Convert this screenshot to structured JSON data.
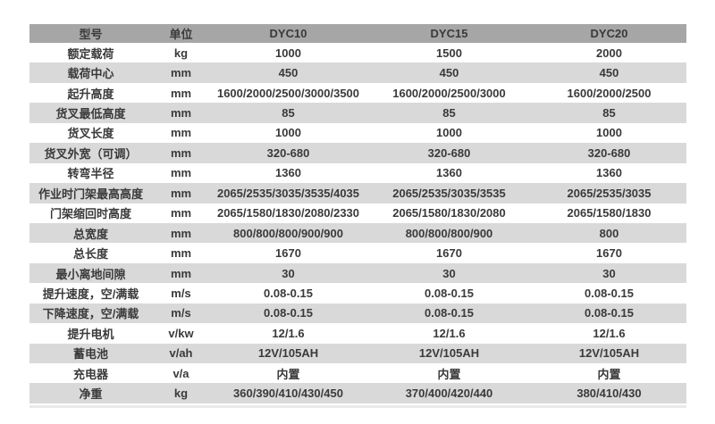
{
  "table": {
    "columns": [
      "型号",
      "单位",
      "DYC10",
      "DYC15",
      "DYC20"
    ],
    "rows": [
      {
        "label": "额定载荷",
        "unit": "kg",
        "dyc10": "1000",
        "dyc15": "1500",
        "dyc20": "2000"
      },
      {
        "label": "载荷中心",
        "unit": "mm",
        "dyc10": "450",
        "dyc15": "450",
        "dyc20": "450"
      },
      {
        "label": "起升高度",
        "unit": "mm",
        "dyc10": "1600/2000/2500/3000/3500",
        "dyc15": "1600/2000/2500/3000",
        "dyc20": "1600/2000/2500"
      },
      {
        "label": "货叉最低高度",
        "unit": "mm",
        "dyc10": "85",
        "dyc15": "85",
        "dyc20": "85"
      },
      {
        "label": "货叉长度",
        "unit": "mm",
        "dyc10": "1000",
        "dyc15": "1000",
        "dyc20": "1000"
      },
      {
        "label": "货叉外宽（可调）",
        "unit": "mm",
        "dyc10": "320-680",
        "dyc15": "320-680",
        "dyc20": "320-680"
      },
      {
        "label": "转弯半径",
        "unit": "mm",
        "dyc10": "1360",
        "dyc15": "1360",
        "dyc20": "1360"
      },
      {
        "label": "作业时门架最高高度",
        "unit": "mm",
        "dyc10": "2065/2535/3035/3535/4035",
        "dyc15": "2065/2535/3035/3535",
        "dyc20": "2065/2535/3035"
      },
      {
        "label": "门架缩回时高度",
        "unit": "mm",
        "dyc10": "2065/1580/1830/2080/2330",
        "dyc15": "2065/1580/1830/2080",
        "dyc20": "2065/1580/1830"
      },
      {
        "label": "总宽度",
        "unit": "mm",
        "dyc10": "800/800/800/900/900",
        "dyc15": "800/800/800/900",
        "dyc20": "800"
      },
      {
        "label": "总长度",
        "unit": "mm",
        "dyc10": "1670",
        "dyc15": "1670",
        "dyc20": "1670"
      },
      {
        "label": "最小离地间隙",
        "unit": "mm",
        "dyc10": "30",
        "dyc15": "30",
        "dyc20": "30"
      },
      {
        "label": "提升速度，空/满载",
        "unit": "m/s",
        "dyc10": "0.08-0.15",
        "dyc15": "0.08-0.15",
        "dyc20": "0.08-0.15"
      },
      {
        "label": "下降速度，空/满载",
        "unit": "m/s",
        "dyc10": "0.08-0.15",
        "dyc15": "0.08-0.15",
        "dyc20": "0.08-0.15"
      },
      {
        "label": "提升电机",
        "unit": "v/kw",
        "dyc10": "12/1.6",
        "dyc15": "12/1.6",
        "dyc20": "12/1.6"
      },
      {
        "label": "蓄电池",
        "unit": "v/ah",
        "dyc10": "12V/105AH",
        "dyc15": "12V/105AH",
        "dyc20": "12V/105AH"
      },
      {
        "label": "充电器",
        "unit": "v/a",
        "dyc10": "内置",
        "dyc15": "内置",
        "dyc20": "内置"
      },
      {
        "label": "净重",
        "unit": "kg",
        "dyc10": "360/390/410/430/450",
        "dyc15": "370/400/420/440",
        "dyc20": "380/410/430"
      }
    ]
  },
  "colors": {
    "header_bg": "#a6a6a6",
    "stripe_bg": "#d9d9d9",
    "text": "#3a3a3a",
    "bottom_strip": "#ece9e7"
  }
}
